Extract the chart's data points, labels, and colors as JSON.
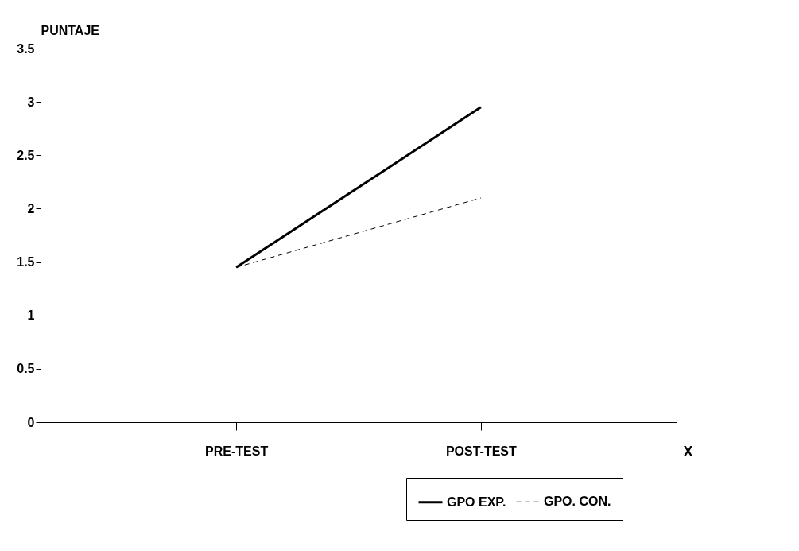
{
  "chart_data": {
    "type": "line",
    "ylabel": "PUNTAJE",
    "xlabel": "X",
    "categories": [
      "PRE-TEST",
      "POST-TEST"
    ],
    "series": [
      {
        "name": "GPO EXP.",
        "color": "#000000",
        "values": [
          1.45,
          2.95
        ],
        "line_style": "solid"
      },
      {
        "name": "GPO. CON.",
        "color": "#000000",
        "values": [
          1.45,
          2.1
        ],
        "line_style": "dashed"
      }
    ],
    "ylim": [
      0,
      3.5
    ],
    "yticks": [
      0,
      0.5,
      1,
      1.5,
      2,
      2.5,
      3,
      3.5
    ],
    "grid": false,
    "legend": "bottom right",
    "marker": "none"
  }
}
